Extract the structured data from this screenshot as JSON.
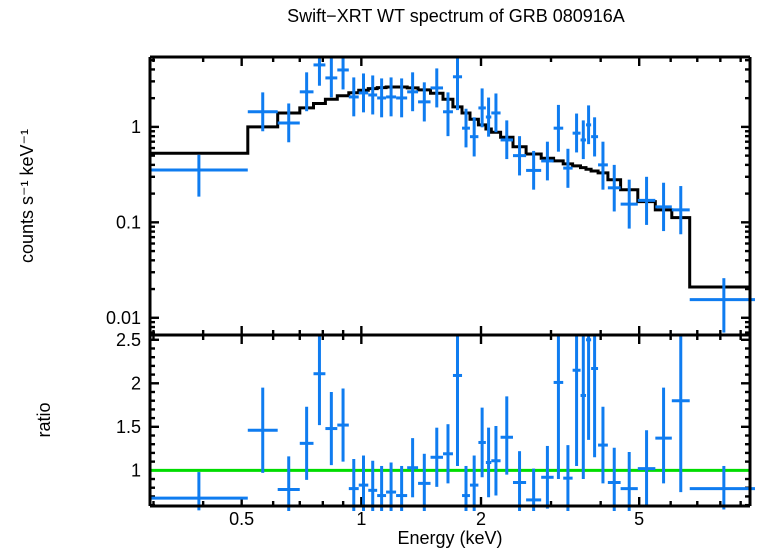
{
  "title": "Swift−XRT WT spectrum of GRB 080916A",
  "colors": {
    "data": "#0f7cf0",
    "model": "#000000",
    "unity_line": "#00dc00",
    "frame": "#000000",
    "background": "#ffffff"
  },
  "chart_data": {
    "type": "scatter",
    "title": "Swift−XRT WT spectrum of GRB 080916A",
    "xlabel": "Energy (keV)",
    "ylabel_top": "counts s⁻¹ keV⁻¹",
    "ylabel_bottom": "ratio",
    "xscale": "log",
    "yscale_top": "log",
    "yscale_bottom": "linear",
    "xlim": [
      0.294,
      9.5
    ],
    "ylim_top": [
      0.0066,
      5.4
    ],
    "ylim_bottom": [
      0.59,
      2.555
    ],
    "grid": false,
    "legend": false,
    "x_ticks": {
      "major": [
        0.5,
        1,
        2,
        5
      ],
      "labels": [
        "0.5",
        "1",
        "2",
        "5"
      ],
      "minor": [
        0.3,
        0.4,
        0.6,
        0.7,
        0.8,
        0.9,
        3,
        4,
        6,
        7,
        8,
        9
      ]
    },
    "y_ticks_top": {
      "major": [
        1,
        0.1,
        0.01
      ],
      "labels": [
        "1",
        "0.1",
        "0.01"
      ]
    },
    "y_ticks_bottom": {
      "major": [
        1,
        1.5,
        2,
        2.5
      ],
      "labels": [
        "1",
        "1.5",
        "2",
        "2.5"
      ]
    },
    "ratio_reference": 1,
    "series": [
      {
        "name": "observed-counts",
        "style": "errorbar-cross",
        "color": "#0f7cf0"
      },
      {
        "name": "folded-model",
        "style": "step",
        "color": "#000000"
      },
      {
        "name": "ratio",
        "style": "errorbar-cross",
        "color": "#0f7cf0"
      }
    ],
    "bins": [
      {
        "e_lo": 0.294,
        "e_hi": 0.518,
        "counts": 0.354,
        "c_lo": 0.186,
        "c_hi": 0.51,
        "model": 0.53,
        "ratio": 0.68,
        "r_lo": 0.54,
        "r_hi": 0.98
      },
      {
        "e_lo": 0.518,
        "e_hi": 0.616,
        "counts": 1.44,
        "c_lo": 0.9,
        "c_hi": 2.3,
        "model": 1.0,
        "ratio": 1.46,
        "r_lo": 0.97,
        "r_hi": 1.95
      },
      {
        "e_lo": 0.616,
        "e_hi": 0.7,
        "counts": 1.1,
        "c_lo": 0.69,
        "c_hi": 1.76,
        "model": 1.4,
        "ratio": 0.78,
        "r_lo": 0.4,
        "r_hi": 1.16
      },
      {
        "e_lo": 0.7,
        "e_hi": 0.758,
        "counts": 2.33,
        "c_lo": 1.46,
        "c_hi": 3.73,
        "model": 1.58,
        "ratio": 1.31,
        "r_lo": 0.89,
        "r_hi": 1.73
      },
      {
        "e_lo": 0.758,
        "e_hi": 0.812,
        "counts": 4.46,
        "c_lo": 2.7,
        "c_hi": 6.5,
        "model": 1.76,
        "ratio": 2.11,
        "r_lo": 1.52,
        "r_hi": 2.56
      },
      {
        "e_lo": 0.812,
        "e_hi": 0.87,
        "counts": 3.26,
        "c_lo": 2.04,
        "c_hi": 5.22,
        "model": 1.95,
        "ratio": 1.48,
        "r_lo": 1.06,
        "r_hi": 1.9
      },
      {
        "e_lo": 0.87,
        "e_hi": 0.93,
        "counts": 3.95,
        "c_lo": 2.47,
        "c_hi": 6.0,
        "model": 2.12,
        "ratio": 1.52,
        "r_lo": 1.1,
        "r_hi": 1.94
      },
      {
        "e_lo": 0.93,
        "e_hi": 0.985,
        "counts": 2.06,
        "c_lo": 1.29,
        "c_hi": 3.3,
        "model": 2.28,
        "ratio": 0.79,
        "r_lo": 0.45,
        "r_hi": 1.13
      },
      {
        "e_lo": 0.985,
        "e_hi": 1.041,
        "counts": 2.27,
        "c_lo": 1.42,
        "c_hi": 3.63,
        "model": 2.42,
        "ratio": 0.83,
        "r_lo": 0.49,
        "r_hi": 1.17
      },
      {
        "e_lo": 1.041,
        "e_hi": 1.096,
        "counts": 2.16,
        "c_lo": 1.35,
        "c_hi": 3.46,
        "model": 2.52,
        "ratio": 0.77,
        "r_lo": 0.43,
        "r_hi": 1.11
      },
      {
        "e_lo": 1.096,
        "e_hi": 1.154,
        "counts": 2.01,
        "c_lo": 1.26,
        "c_hi": 3.22,
        "model": 2.58,
        "ratio": 0.71,
        "r_lo": 0.37,
        "r_hi": 1.05
      },
      {
        "e_lo": 1.154,
        "e_hi": 1.223,
        "counts": 2.06,
        "c_lo": 1.29,
        "c_hi": 3.3,
        "model": 2.62,
        "ratio": 0.75,
        "r_lo": 0.41,
        "r_hi": 1.09
      },
      {
        "e_lo": 1.223,
        "e_hi": 1.304,
        "counts": 2.01,
        "c_lo": 1.26,
        "c_hi": 3.22,
        "model": 2.62,
        "ratio": 0.71,
        "r_lo": 0.37,
        "r_hi": 1.05
      },
      {
        "e_lo": 1.304,
        "e_hi": 1.389,
        "counts": 2.33,
        "c_lo": 1.46,
        "c_hi": 3.73,
        "model": 2.56,
        "ratio": 1.03,
        "r_lo": 0.69,
        "r_hi": 1.37
      },
      {
        "e_lo": 1.389,
        "e_hi": 1.493,
        "counts": 1.83,
        "c_lo": 1.14,
        "c_hi": 2.93,
        "model": 2.44,
        "ratio": 0.85,
        "r_lo": 0.51,
        "r_hi": 1.19
      },
      {
        "e_lo": 1.493,
        "e_hi": 1.605,
        "counts": 2.56,
        "c_lo": 1.6,
        "c_hi": 4.1,
        "model": 2.25,
        "ratio": 1.15,
        "r_lo": 0.81,
        "r_hi": 1.49
      },
      {
        "e_lo": 1.605,
        "e_hi": 1.7,
        "counts": 1.44,
        "c_lo": 0.8,
        "c_hi": 2.3,
        "model": 1.95,
        "ratio": 1.19,
        "r_lo": 0.85,
        "r_hi": 1.53
      },
      {
        "e_lo": 1.7,
        "e_hi": 1.792,
        "counts": 3.35,
        "c_lo": 1.5,
        "c_hi": 5.45,
        "model": 1.62,
        "ratio": 2.09,
        "r_lo": 1.05,
        "r_hi": 3.2
      },
      {
        "e_lo": 1.792,
        "e_hi": 1.876,
        "counts": 0.97,
        "c_lo": 0.61,
        "c_hi": 1.55,
        "model": 1.4,
        "ratio": 0.71,
        "r_lo": 0.37,
        "r_hi": 1.05
      },
      {
        "e_lo": 1.876,
        "e_hi": 1.97,
        "counts": 0.79,
        "c_lo": 0.49,
        "c_hi": 1.26,
        "model": 1.2,
        "ratio": 0.83,
        "r_lo": 0.49,
        "r_hi": 1.17
      },
      {
        "e_lo": 1.97,
        "e_hi": 2.057,
        "counts": 1.58,
        "c_lo": 0.99,
        "c_hi": 2.53,
        "model": 1.05,
        "ratio": 1.32,
        "r_lo": 0.92,
        "r_hi": 1.72
      },
      {
        "e_lo": 2.057,
        "e_hi": 2.123,
        "counts": 1.27,
        "c_lo": 0.79,
        "c_hi": 2.03,
        "model": 0.95,
        "ratio": 1.09,
        "r_lo": 0.69,
        "r_hi": 1.49
      },
      {
        "e_lo": 2.123,
        "e_hi": 2.24,
        "counts": 1.4,
        "c_lo": 0.88,
        "c_hi": 2.24,
        "model": 0.88,
        "ratio": 1.11,
        "r_lo": 0.71,
        "r_hi": 1.51
      },
      {
        "e_lo": 2.24,
        "e_hi": 2.407,
        "counts": 0.73,
        "c_lo": 0.46,
        "c_hi": 1.17,
        "model": 0.78,
        "ratio": 1.38,
        "r_lo": 0.95,
        "r_hi": 1.85
      },
      {
        "e_lo": 2.407,
        "e_hi": 2.597,
        "counts": 0.5,
        "c_lo": 0.31,
        "c_hi": 0.8,
        "model": 0.62,
        "ratio": 0.86,
        "r_lo": 0.5,
        "r_hi": 1.22
      },
      {
        "e_lo": 2.597,
        "e_hi": 2.834,
        "counts": 0.35,
        "c_lo": 0.22,
        "c_hi": 0.56,
        "model": 0.52,
        "ratio": 0.66,
        "r_lo": 0.3,
        "r_hi": 1.02
      },
      {
        "e_lo": 2.834,
        "e_hi": 3.046,
        "counts": 0.44,
        "c_lo": 0.275,
        "c_hi": 0.7,
        "model": 0.47,
        "ratio": 0.92,
        "r_lo": 0.56,
        "r_hi": 1.28
      },
      {
        "e_lo": 3.046,
        "e_hi": 3.22,
        "counts": 0.97,
        "c_lo": 0.55,
        "c_hi": 1.7,
        "model": 0.44,
        "ratio": 2.01,
        "r_lo": 0.9,
        "r_hi": 3.3
      },
      {
        "e_lo": 3.22,
        "e_hi": 3.4,
        "counts": 0.37,
        "c_lo": 0.23,
        "c_hi": 0.59,
        "model": 0.41,
        "ratio": 0.91,
        "r_lo": 0.53,
        "r_hi": 1.29
      },
      {
        "e_lo": 3.4,
        "e_hi": 3.56,
        "counts": 0.86,
        "c_lo": 0.54,
        "c_hi": 1.38,
        "model": 0.39,
        "ratio": 2.15,
        "r_lo": 1.05,
        "r_hi": 3.3
      },
      {
        "e_lo": 3.56,
        "e_hi": 3.675,
        "counts": 0.73,
        "c_lo": 0.46,
        "c_hi": 1.17,
        "model": 0.375,
        "ratio": 1.86,
        "r_lo": 0.9,
        "r_hi": 2.9
      },
      {
        "e_lo": 3.675,
        "e_hi": 3.785,
        "counts": 1.05,
        "c_lo": 0.66,
        "c_hi": 1.68,
        "model": 0.36,
        "ratio": 2.5,
        "r_lo": 1.35,
        "r_hi": 3.6
      },
      {
        "e_lo": 3.785,
        "e_hi": 3.94,
        "counts": 0.79,
        "c_lo": 0.49,
        "c_hi": 1.26,
        "model": 0.345,
        "ratio": 2.17,
        "r_lo": 1.15,
        "r_hi": 3.4
      },
      {
        "e_lo": 3.94,
        "e_hi": 4.17,
        "counts": 0.4,
        "c_lo": 0.22,
        "c_hi": 0.7,
        "model": 0.33,
        "ratio": 1.29,
        "r_lo": 0.85,
        "r_hi": 1.73
      },
      {
        "e_lo": 4.17,
        "e_hi": 4.49,
        "counts": 0.23,
        "c_lo": 0.13,
        "c_hi": 0.4,
        "model": 0.28,
        "ratio": 0.86,
        "r_lo": 0.46,
        "r_hi": 1.26
      },
      {
        "e_lo": 4.49,
        "e_hi": 4.96,
        "counts": 0.155,
        "c_lo": 0.086,
        "c_hi": 0.28,
        "model": 0.22,
        "ratio": 0.79,
        "r_lo": 0.37,
        "r_hi": 1.21
      },
      {
        "e_lo": 4.96,
        "e_hi": 5.49,
        "counts": 0.17,
        "c_lo": 0.094,
        "c_hi": 0.3,
        "model": 0.165,
        "ratio": 1.02,
        "r_lo": 0.58,
        "r_hi": 1.46
      },
      {
        "e_lo": 5.49,
        "e_hi": 6.04,
        "counts": 0.145,
        "c_lo": 0.081,
        "c_hi": 0.26,
        "model": 0.135,
        "ratio": 1.37,
        "r_lo": 0.85,
        "r_hi": 1.95
      },
      {
        "e_lo": 6.04,
        "e_hi": 6.7,
        "counts": 0.135,
        "c_lo": 0.075,
        "c_hi": 0.24,
        "model": 0.112,
        "ratio": 1.8,
        "r_lo": 0.75,
        "r_hi": 3.1
      },
      {
        "e_lo": 6.7,
        "e_hi": 9.95,
        "counts": 0.0155,
        "c_lo": 0.007,
        "c_hi": 0.026,
        "model": 0.021,
        "ratio": 0.79,
        "r_lo": 0.55,
        "r_hi": 1.05
      }
    ]
  }
}
